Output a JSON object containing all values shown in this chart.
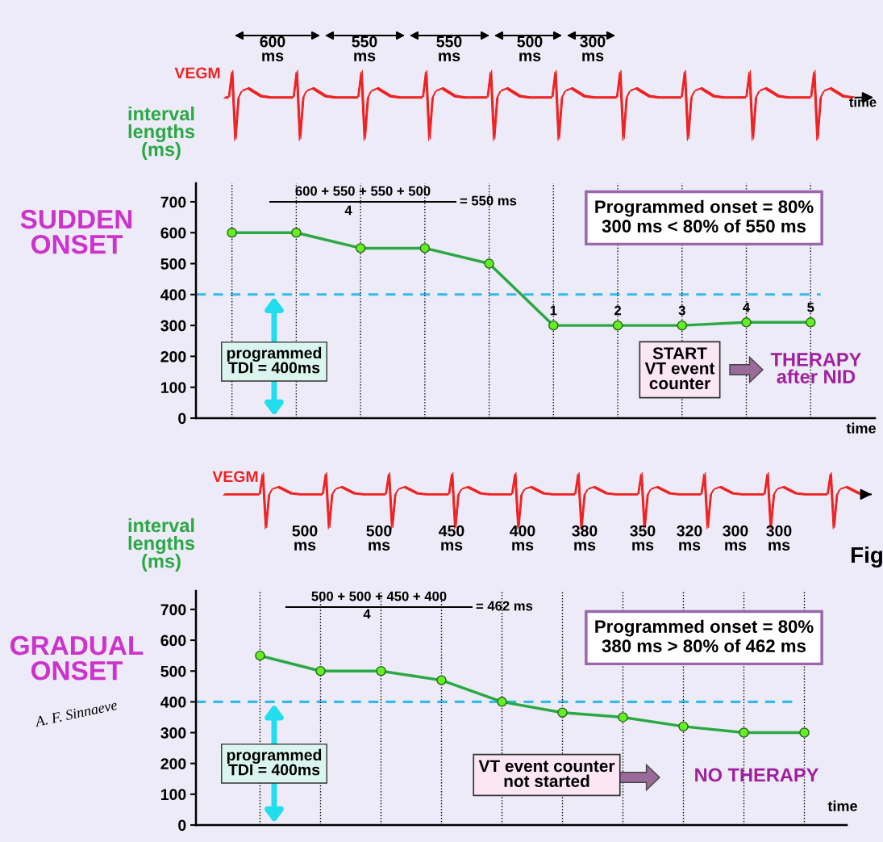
{
  "chart_data": [
    {
      "type": "line",
      "title": "SUDDEN\nONSET",
      "xlabel": "time",
      "ylabel": "interval\nlengths\n(ms)",
      "categories": [
        null,
        null,
        null,
        null,
        null,
        null,
        null,
        null,
        null,
        null
      ],
      "series": [
        {
          "color": "#2aa844",
          "values": [
            600,
            600,
            550,
            550,
            500,
            300,
            300,
            300,
            310,
            310
          ]
        }
      ],
      "ylim": [
        0,
        760
      ],
      "yticks": [
        0,
        100,
        200,
        300,
        400,
        500,
        600,
        700
      ],
      "grid": "x",
      "marker": "circle",
      "tick_labels": "y",
      "ref_lines": [
        {
          "axis": "y",
          "value": 400,
          "color": "#33bbee",
          "line_style": "dashed"
        }
      ],
      "annotations": [
        "programmed\nTDI = 400ms",
        "VEGM",
        "time",
        "600\nms",
        "550\nms",
        "550\nms",
        "500\nms",
        "300\nms",
        "600 + 550 + 550 + 500",
        "4",
        "= 550 ms",
        "Programmed onset = 80%\n300 ms < 80% of 550 ms",
        "1",
        "2",
        "3",
        "4",
        "5",
        "START\nVT event\ncounter",
        "THERAPY\nafter NID"
      ]
    },
    {
      "type": "line",
      "title": "GRADUAL\nONSET",
      "xlabel": "time",
      "ylabel": "interval\nlengths\n(ms)",
      "categories": [
        null,
        null,
        null,
        null,
        null,
        null,
        null,
        null,
        null,
        null
      ],
      "series": [
        {
          "color": "#2aa844",
          "values": [
            550,
            500,
            500,
            470,
            400,
            365,
            350,
            320,
            300,
            300
          ]
        }
      ],
      "ylim": [
        0,
        760
      ],
      "yticks": [
        0,
        100,
        200,
        300,
        400,
        500,
        600,
        700
      ],
      "grid": "x",
      "marker": "circle",
      "tick_labels": "y",
      "ref_lines": [
        {
          "axis": "y",
          "value": 400,
          "color": "#33bbee",
          "line_style": "dashed"
        }
      ],
      "annotations": [
        "programmed\nTDI = 400ms",
        "VEGM",
        "500\nms",
        "500\nms",
        "450\nms",
        "400\nms",
        "380\nms",
        "350\nms",
        "320\nms",
        "300\nms",
        "300\nms",
        "500 + 500 + 450 + 400",
        "4",
        "= 462 ms",
        "Programmed onset = 80%\n380 ms > 80% of 462 ms",
        "VT event counter\nnot started",
        "NO THERAPY",
        "Fig",
        "A. F. Sinnaeve"
      ]
    }
  ]
}
